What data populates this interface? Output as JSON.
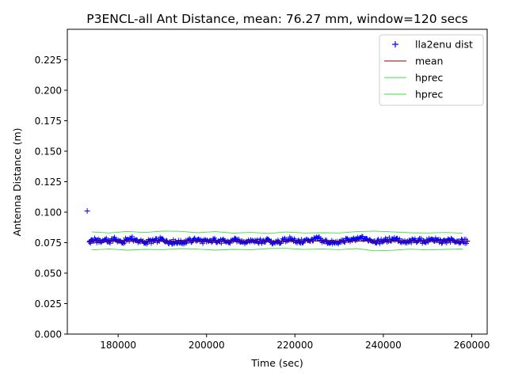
{
  "chart_data": {
    "type": "scatter",
    "title": "P3ENCL-all Ant Distance, mean: 76.27 mm, window=120 secs",
    "xlabel": "Time (sec)",
    "ylabel": "Antenna Distance (m)",
    "xlim": [
      168500,
      263500
    ],
    "ylim": [
      0.0,
      0.25
    ],
    "xticks": [
      180000,
      200000,
      220000,
      240000,
      260000
    ],
    "xtick_labels": [
      "180000",
      "200000",
      "220000",
      "240000",
      "260000"
    ],
    "yticks": [
      0.0,
      0.025,
      0.05,
      0.075,
      0.1,
      0.125,
      0.15,
      0.175,
      0.2,
      0.225
    ],
    "ytick_labels": [
      "0.000",
      "0.025",
      "0.050",
      "0.075",
      "0.100",
      "0.125",
      "0.150",
      "0.175",
      "0.200",
      "0.225"
    ],
    "grid": false,
    "legend_position": "top-right",
    "series": [
      {
        "name": "lla2enu dist",
        "kind": "markers",
        "marker": "plus",
        "color": "#0000ff",
        "x": [
          173000,
          173500,
          174000,
          175000,
          176000,
          177000,
          178000,
          179000,
          180000,
          181000,
          182000,
          183000,
          184000,
          185000,
          186000,
          187000,
          188000,
          189000,
          190000,
          191000,
          192000,
          193000,
          194000,
          195000,
          196000,
          197000,
          198000,
          199000,
          200000,
          201000,
          202000,
          203000,
          204000,
          205000,
          206000,
          207000,
          208000,
          209000,
          210000,
          211000,
          212000,
          213000,
          214000,
          215000,
          216000,
          217000,
          218000,
          219000,
          220000,
          221000,
          222000,
          223000,
          224000,
          225000,
          226000,
          227000,
          228000,
          229000,
          230000,
          231000,
          232000,
          233000,
          234000,
          235000,
          236000,
          237000,
          238000,
          239000,
          240000,
          241000,
          242000,
          243000,
          244000,
          245000,
          246000,
          247000,
          248000,
          249000,
          250000,
          251000,
          252000,
          253000,
          254000,
          255000,
          256000,
          257000,
          258000,
          259000
        ],
        "y": [
          0.101,
          0.0755,
          0.0772,
          0.0768,
          0.0761,
          0.0774,
          0.0758,
          0.0781,
          0.0769,
          0.0752,
          0.0776,
          0.0784,
          0.0771,
          0.0757,
          0.0749,
          0.0763,
          0.0759,
          0.0772,
          0.0778,
          0.0766,
          0.0753,
          0.0761,
          0.0748,
          0.0757,
          0.0764,
          0.0769,
          0.0773,
          0.0762,
          0.0758,
          0.0766,
          0.0771,
          0.0759,
          0.0763,
          0.0752,
          0.0766,
          0.0774,
          0.0762,
          0.0759,
          0.0771,
          0.0767,
          0.0761,
          0.0758,
          0.0776,
          0.0745,
          0.0752,
          0.0762,
          0.0774,
          0.0781,
          0.0768,
          0.0756,
          0.0762,
          0.0771,
          0.0766,
          0.0788,
          0.0769,
          0.0759,
          0.0751,
          0.0747,
          0.0758,
          0.0763,
          0.0771,
          0.0769,
          0.0774,
          0.0786,
          0.0782,
          0.0771,
          0.0764,
          0.0758,
          0.0766,
          0.0774,
          0.0779,
          0.0783,
          0.0761,
          0.0749,
          0.0758,
          0.0767,
          0.0771,
          0.0762,
          0.0766,
          0.0774,
          0.0769,
          0.0762,
          0.0758,
          0.0771,
          0.0766,
          0.0762,
          0.0759,
          0.0761
        ]
      },
      {
        "name": "mean",
        "kind": "line",
        "color": "#8b0000",
        "x": [
          173000,
          259500
        ],
        "y": [
          0.07627,
          0.07627
        ]
      },
      {
        "name": "hprec",
        "kind": "line",
        "color": "#44dd44",
        "x": [
          174000,
          178000,
          182000,
          186000,
          190000,
          194000,
          198000,
          202000,
          206000,
          210000,
          214000,
          218000,
          222000,
          226000,
          230000,
          234000,
          238000,
          242000,
          246000,
          250000,
          254000,
          258000
        ],
        "y": [
          0.0838,
          0.0829,
          0.0842,
          0.0833,
          0.0845,
          0.0843,
          0.0831,
          0.084,
          0.0828,
          0.0834,
          0.0826,
          0.0837,
          0.0829,
          0.0831,
          0.0829,
          0.084,
          0.0845,
          0.0838,
          0.0831,
          0.0829,
          0.0833,
          0.0827
        ]
      },
      {
        "name": "hprec",
        "kind": "line",
        "color": "#44dd44",
        "x": [
          174000,
          178000,
          182000,
          186000,
          190000,
          194000,
          198000,
          202000,
          206000,
          210000,
          214000,
          218000,
          222000,
          226000,
          230000,
          234000,
          238000,
          242000,
          246000,
          250000,
          254000,
          258000
        ],
        "y": [
          0.069,
          0.0699,
          0.0688,
          0.0695,
          0.0692,
          0.0701,
          0.0697,
          0.0688,
          0.0695,
          0.0692,
          0.0701,
          0.0703,
          0.0694,
          0.0699,
          0.0693,
          0.0701,
          0.0683,
          0.0687,
          0.0697,
          0.069,
          0.0695,
          0.0698
        ]
      }
    ]
  }
}
